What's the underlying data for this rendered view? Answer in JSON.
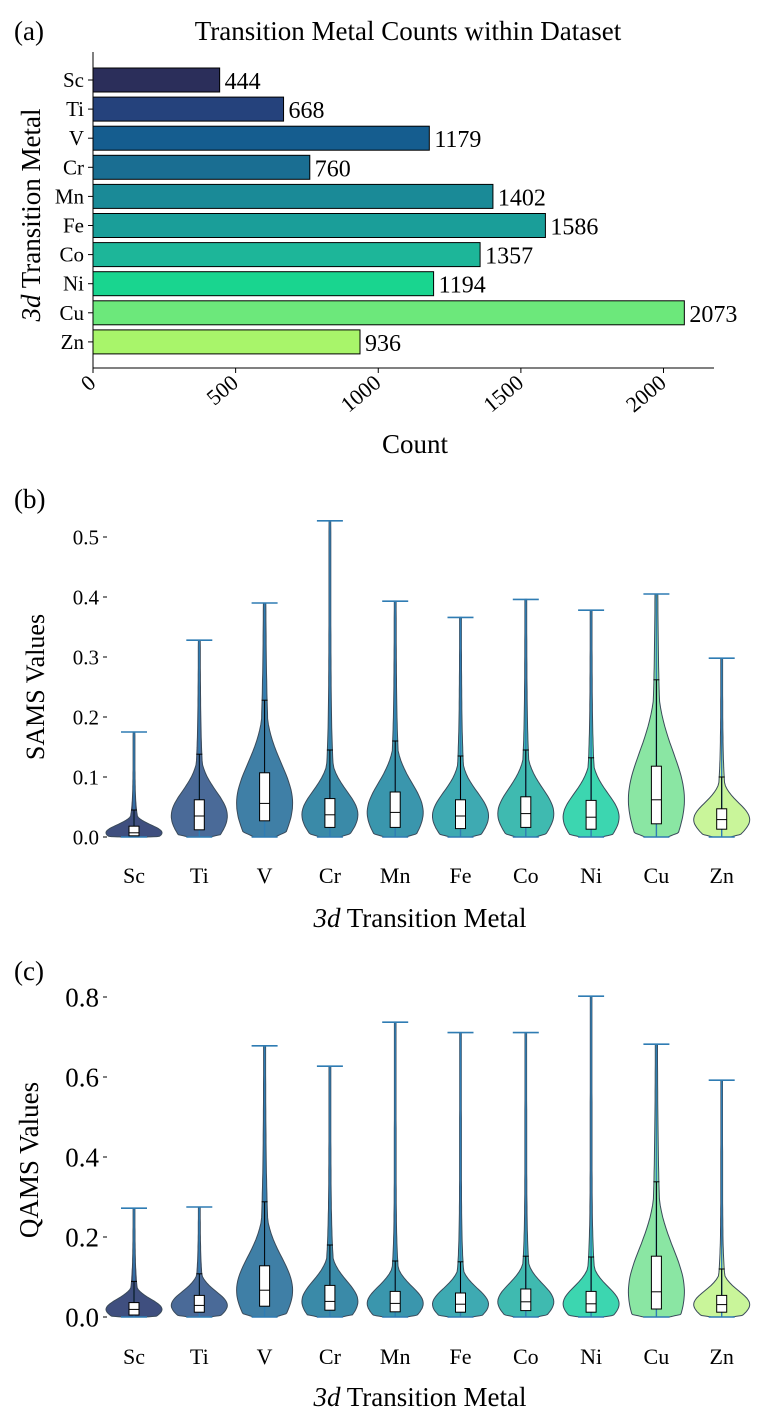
{
  "panel_a": {
    "label": "(a)",
    "chart_data": {
      "type": "bar",
      "orientation": "horizontal",
      "title": "Transition Metal Counts within Dataset",
      "xlabel": "Count",
      "ylabel_italic": "3d",
      "ylabel_rest": " Transition Metal",
      "categories": [
        "Sc",
        "Ti",
        "V",
        "Cr",
        "Mn",
        "Fe",
        "Co",
        "Ni",
        "Cu",
        "Zn"
      ],
      "values": [
        444,
        668,
        1179,
        760,
        1402,
        1586,
        1357,
        1194,
        2073,
        936
      ],
      "xticks": [
        0,
        500,
        1000,
        1500,
        2000
      ],
      "xtick_labels": [
        "0",
        "500",
        "1000",
        "1500",
        "2000"
      ],
      "xlim": [
        0,
        2177
      ]
    }
  },
  "panel_b": {
    "label": "(b)",
    "chart_data": {
      "type": "violin",
      "xlabel_italic": "3d",
      "xlabel_rest": " Transition Metal",
      "ylabel": "SAMS Values",
      "categories": [
        "Sc",
        "Ti",
        "V",
        "Cr",
        "Mn",
        "Fe",
        "Co",
        "Ni",
        "Cu",
        "Zn"
      ],
      "max": [
        0.175,
        0.328,
        0.39,
        0.527,
        0.393,
        0.366,
        0.396,
        0.378,
        0.405,
        0.298
      ],
      "q1": [
        0.002,
        0.012,
        0.027,
        0.016,
        0.016,
        0.014,
        0.016,
        0.013,
        0.022,
        0.013
      ],
      "median": [
        0.007,
        0.035,
        0.056,
        0.037,
        0.041,
        0.035,
        0.039,
        0.033,
        0.062,
        0.029
      ],
      "q3": [
        0.018,
        0.062,
        0.107,
        0.064,
        0.075,
        0.062,
        0.067,
        0.061,
        0.118,
        0.047
      ],
      "whisker": [
        0.045,
        0.138,
        0.228,
        0.145,
        0.16,
        0.135,
        0.145,
        0.132,
        0.262,
        0.1
      ],
      "yticks": [
        0.0,
        0.1,
        0.2,
        0.3,
        0.4,
        0.5
      ],
      "ytick_labels": [
        "0.0",
        "0.1",
        "0.2",
        "0.3",
        "0.4",
        "0.5"
      ],
      "ylim": [
        -0.005,
        0.54
      ]
    }
  },
  "panel_c": {
    "label": "(c)",
    "chart_data": {
      "type": "violin",
      "xlabel_italic": "3d",
      "xlabel_rest": " Transition Metal",
      "ylabel": "QAMS Values",
      "categories": [
        "Sc",
        "Ti",
        "V",
        "Cr",
        "Mn",
        "Fe",
        "Co",
        "Ni",
        "Cu",
        "Zn"
      ],
      "max": [
        0.272,
        0.275,
        0.678,
        0.627,
        0.737,
        0.711,
        0.711,
        0.802,
        0.682,
        0.592
      ],
      "q1": [
        0.005,
        0.012,
        0.027,
        0.017,
        0.013,
        0.012,
        0.016,
        0.012,
        0.02,
        0.012
      ],
      "median": [
        0.019,
        0.029,
        0.067,
        0.039,
        0.034,
        0.032,
        0.038,
        0.033,
        0.063,
        0.031
      ],
      "q3": [
        0.036,
        0.054,
        0.128,
        0.079,
        0.064,
        0.06,
        0.07,
        0.064,
        0.152,
        0.054
      ],
      "whisker": [
        0.089,
        0.108,
        0.288,
        0.18,
        0.14,
        0.138,
        0.152,
        0.15,
        0.338,
        0.12
      ],
      "yticks": [
        0.0,
        0.2,
        0.4,
        0.6,
        0.8
      ],
      "ytick_labels": [
        "0.0",
        "0.2",
        "0.4",
        "0.6",
        "0.8"
      ],
      "ylim": [
        -0.01,
        0.83
      ]
    }
  },
  "colors": {
    "bars": [
      "#2b2e5a",
      "#25427c",
      "#155d8f",
      "#1a6e92",
      "#1a8a97",
      "#1a9e99",
      "#1db699",
      "#19d58f",
      "#6ce87b",
      "#a8f56a"
    ],
    "violins": [
      "#3f4f7f",
      "#4a6a98",
      "#3f7fa6",
      "#3a8aa8",
      "#3a96ad",
      "#3eaab2",
      "#3fbab0",
      "#3cd6b0",
      "#8ae6a3",
      "#c9f59a"
    ],
    "whisker": "#2f7cb3",
    "axis": "#000000"
  }
}
